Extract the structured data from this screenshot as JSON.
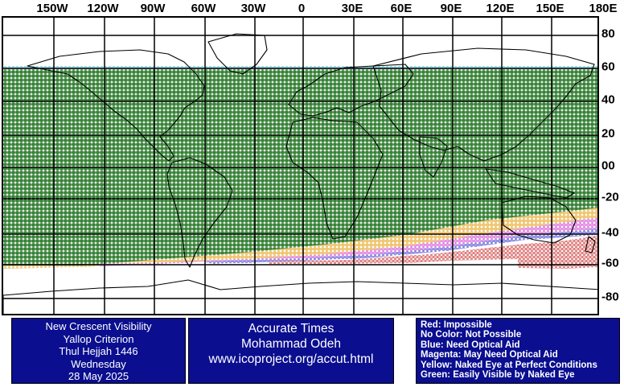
{
  "map": {
    "longitude_labels": [
      "150W",
      "120W",
      "90W",
      "60W",
      "30W",
      "0",
      "30E",
      "60E",
      "90E",
      "120E",
      "150E",
      "180E"
    ],
    "latitude_labels": [
      "80",
      "60",
      "40",
      "20",
      "00",
      "-20",
      "-40",
      "-60",
      "-80"
    ],
    "visibility_zones": [
      {
        "category": "green",
        "color": "#1d6a1d",
        "fill": "#3e9a3e",
        "description": "Green zone spans from about 61N down to roughly 27S (east) / 60S (west)"
      },
      {
        "category": "yellow",
        "color": "#e8b020"
      },
      {
        "category": "magenta",
        "color": "#d040d0"
      },
      {
        "category": "blue",
        "color": "#2020c0"
      },
      {
        "category": "red",
        "color": "#c02020"
      },
      {
        "category": "cyan-border",
        "color": "#40b0c0"
      }
    ]
  },
  "info": {
    "title_lines": [
      "New Crescent Visibility",
      "Yallop Criterion",
      "Thul Hejjah 1446",
      "Wednesday",
      "28 May 2025"
    ],
    "credit_lines": [
      "Accurate Times",
      "Mohammad Odeh",
      "www.icoproject.org/accut.html"
    ],
    "legend_lines": [
      "Red: Impossible",
      "No Color: Not Possible",
      "Blue: Need Optical Aid",
      "Magenta: May Need Optical Aid",
      "Yellow: Naked Eye at Perfect Conditions",
      "Green: Easily Visible by Naked Eye"
    ]
  },
  "colors": {
    "panel_background": "#0a0e8f",
    "panel_text": "#ffffff"
  }
}
